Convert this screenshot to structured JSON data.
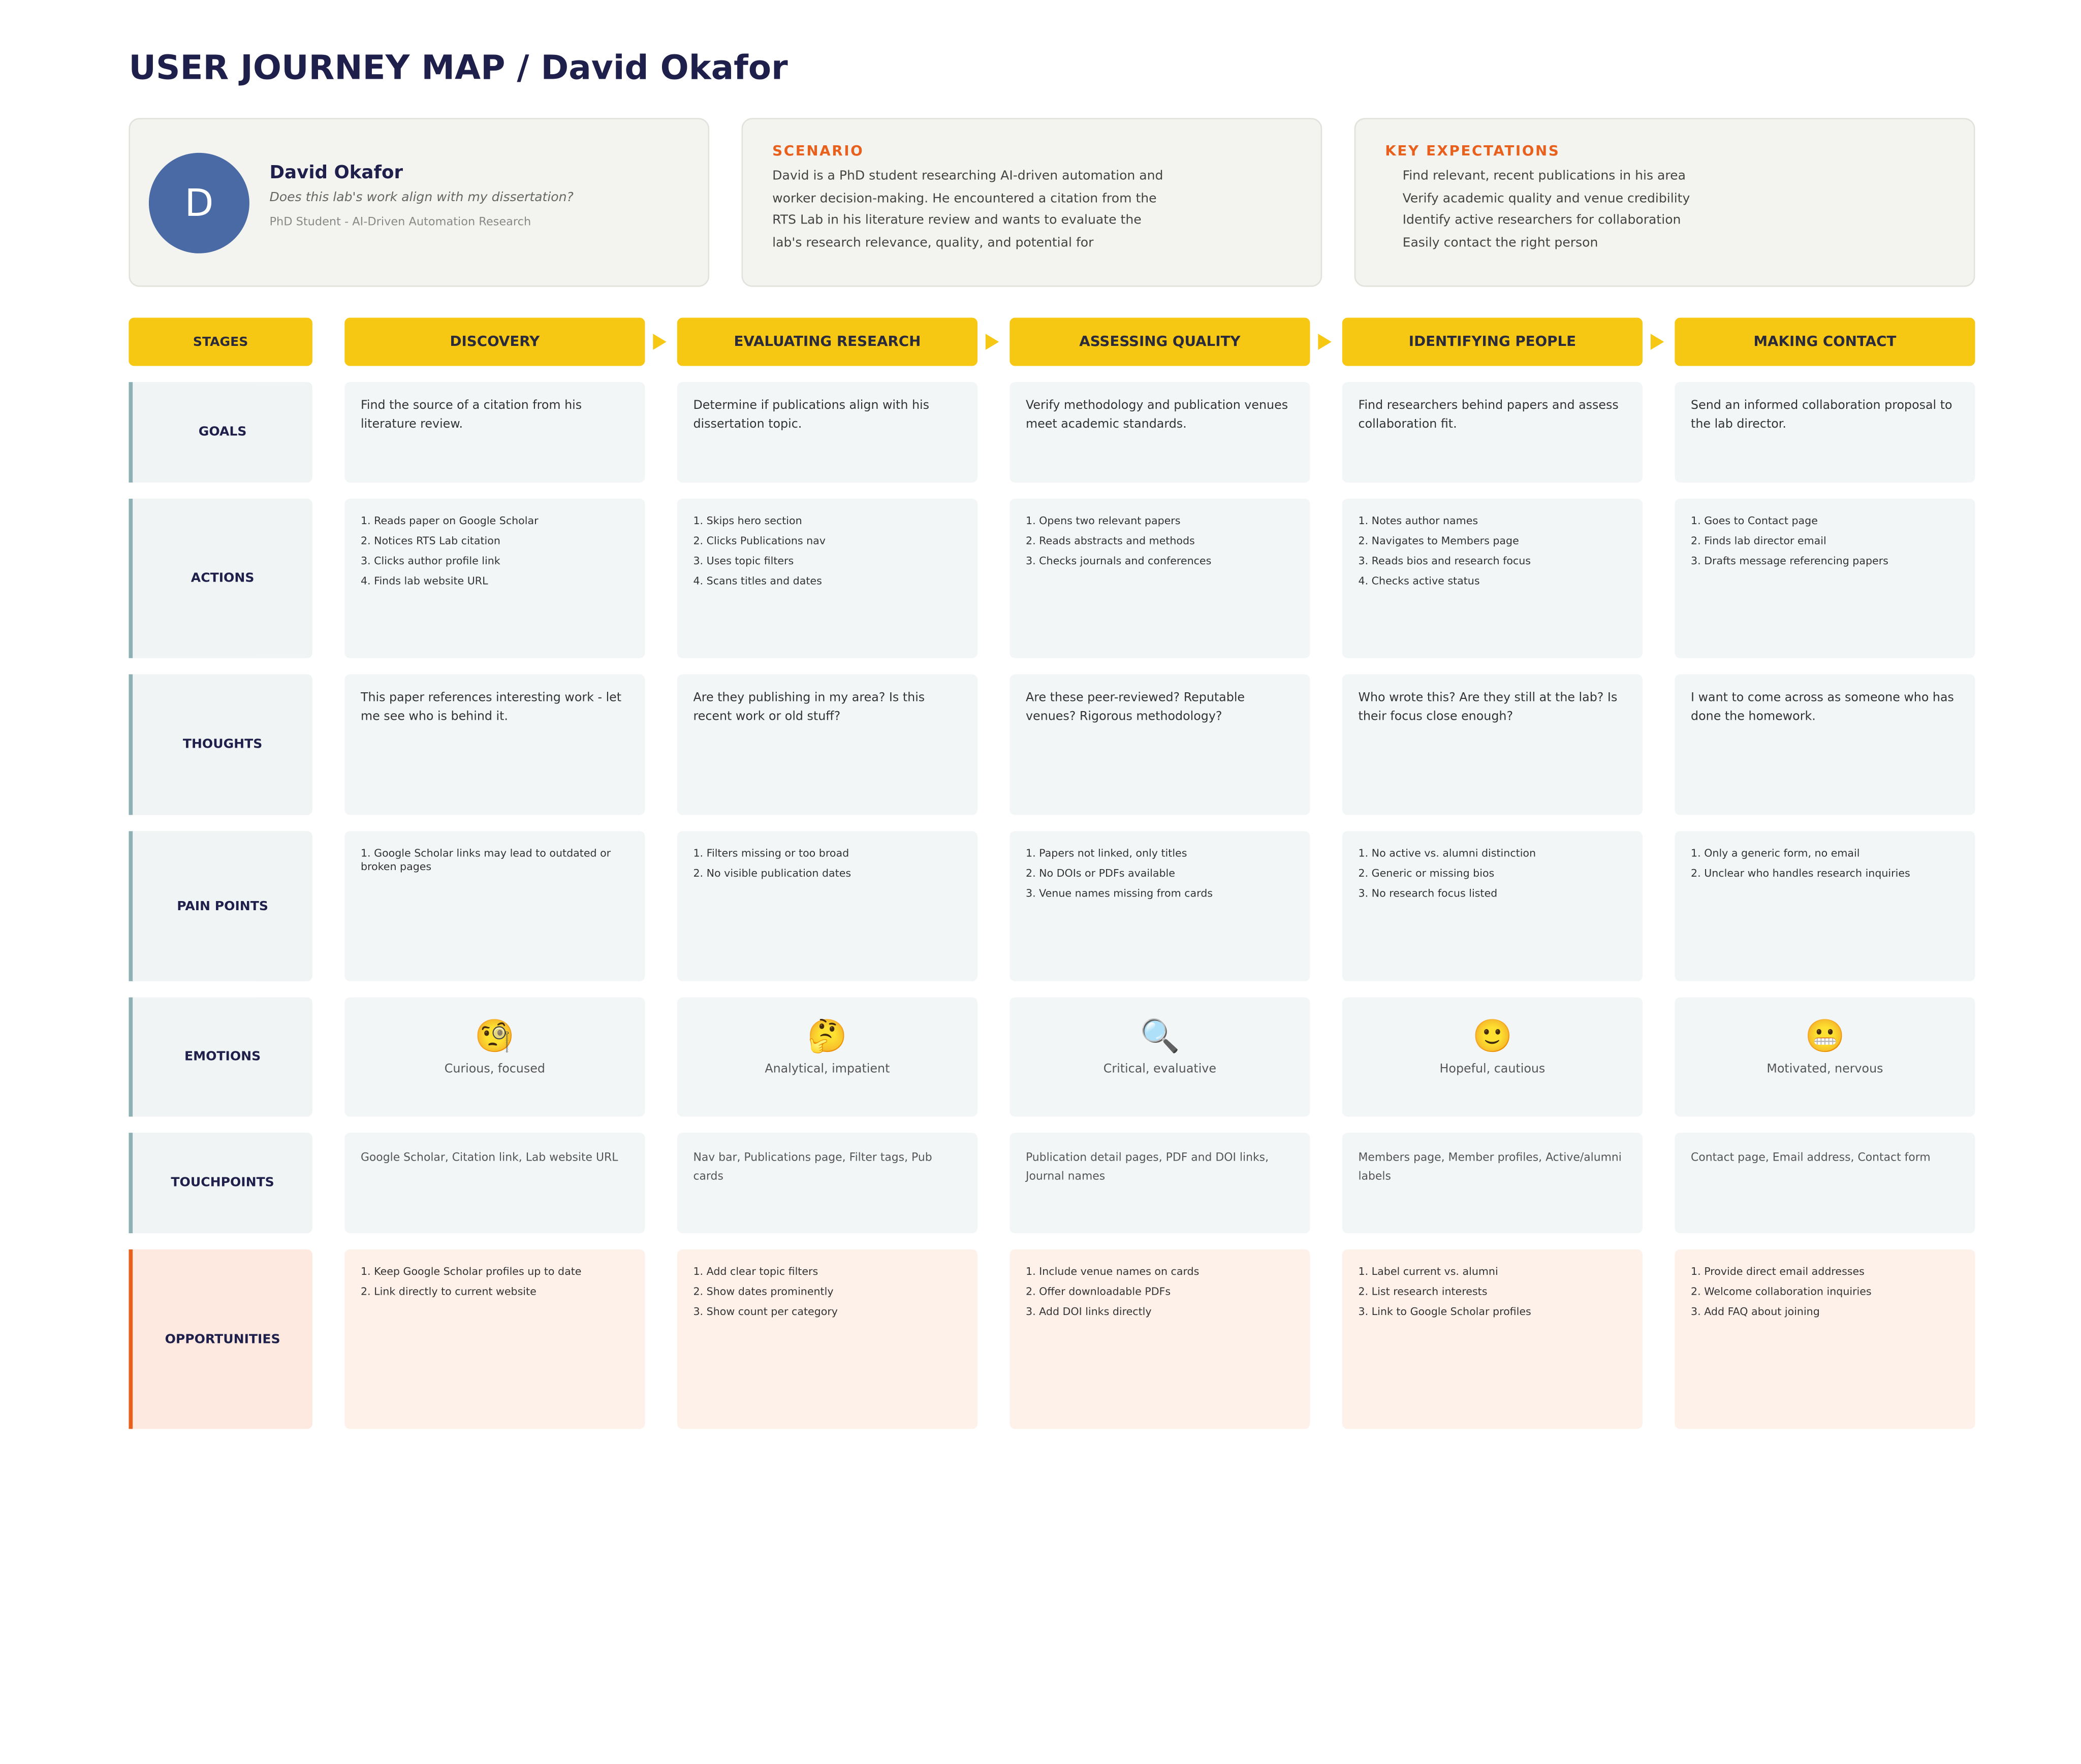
{
  "header": {
    "title": "USER JOURNEY MAP / David Okafor"
  },
  "persona": {
    "initial": "D",
    "name": "David Okafor",
    "question": "Does this lab's work align with my dissertation?",
    "role": "PhD Student - AI-Driven Automation Research"
  },
  "scenario": {
    "heading": "SCENARIO",
    "lines": [
      "David is a PhD student researching AI-driven automation and",
      "worker decision-making. He encountered a citation from the",
      "RTS Lab in his literature review and wants to evaluate the",
      "lab's research relevance, quality, and potential for"
    ]
  },
  "expectations": {
    "heading": "KEY EXPECTATIONS",
    "items": [
      "Find relevant, recent publications in his area",
      "Verify academic quality and venue credibility",
      "Identify active researchers for collaboration",
      "Easily contact the right person"
    ]
  },
  "stages": {
    "label": "STAGES",
    "items": [
      "DISCOVERY",
      "EVALUATING RESEARCH",
      "ASSESSING QUALITY",
      "IDENTIFYING PEOPLE",
      "MAKING CONTACT"
    ]
  },
  "rows": [
    {
      "label": "GOALS",
      "cells": [
        "Find the source of a citation from his literature review.",
        "Determine if publications align with his dissertation topic.",
        "Verify methodology and publication venues meet academic standards.",
        "Find researchers behind papers and assess collaboration fit.",
        "Send an informed collaboration proposal to the lab director."
      ]
    },
    {
      "label": "ACTIONS",
      "cells": [
        [
          "1. Reads paper on Google Scholar",
          "2. Notices RTS Lab citation",
          "3. Clicks author profile link",
          "4. Finds lab website URL"
        ],
        [
          "1. Skips hero section",
          "2. Clicks Publications nav",
          "3. Uses topic filters",
          "4. Scans titles and dates"
        ],
        [
          "1. Opens two relevant papers",
          "2. Reads abstracts and methods",
          "3. Checks journals and conferences"
        ],
        [
          "1. Notes author names",
          "2. Navigates to Members page",
          "3. Reads bios and research focus",
          "4. Checks active status"
        ],
        [
          "1. Goes to Contact page",
          "2. Finds lab director email",
          "3. Drafts message referencing papers"
        ]
      ]
    },
    {
      "label": "THOUGHTS",
      "cells": [
        "This paper references interesting work - let me see who is behind it.",
        "Are they publishing in my area? Is this recent work or old stuff?",
        "Are these peer-reviewed? Reputable venues? Rigorous methodology?",
        "Who wrote this? Are they still at the lab? Is their focus close enough?",
        "I want to come across as someone who has done the homework."
      ]
    },
    {
      "label": "PAIN POINTS",
      "cells": [
        [
          "1. Google Scholar links may lead to outdated or broken pages"
        ],
        [
          "1. Filters missing or too broad",
          "2. No visible publication dates"
        ],
        [
          "1. Papers not linked, only titles",
          "2. No DOIs or PDFs available",
          "3. Venue names missing from cards"
        ],
        [
          "1. No active vs. alumni distinction",
          "2. Generic or missing bios",
          "3. No research focus listed"
        ],
        [
          "1. Only a generic form, no email",
          "2. Unclear who handles research inquiries"
        ]
      ]
    },
    {
      "label": "EMOTIONS",
      "cells": [
        {
          "icon": "🧐",
          "text": "Curious, focused"
        },
        {
          "icon": "🤔",
          "text": "Analytical, impatient"
        },
        {
          "icon": "🔍",
          "text": "Critical, evaluative"
        },
        {
          "icon": "🙂",
          "text": "Hopeful, cautious"
        },
        {
          "icon": "😬",
          "text": "Motivated, nervous"
        }
      ]
    },
    {
      "label": "TOUCHPOINTS",
      "cells": [
        "Google Scholar, Citation link, Lab website URL",
        "Nav bar, Publications page, Filter tags, Pub cards",
        "Publication detail pages, PDF and DOI links, Journal names",
        "Members page, Member profiles, Active/alumni labels",
        "Contact page, Email address, Contact form"
      ]
    },
    {
      "label": "OPPORTUNITIES",
      "cells": [
        [
          "1. Keep Google Scholar profiles up to date",
          "2. Link directly to current website"
        ],
        [
          "1. Add clear topic filters",
          "2. Show dates prominently",
          "3. Show count per category"
        ],
        [
          "1. Include venue names on cards",
          "2. Offer downloadable PDFs",
          "3. Add DOI links directly"
        ],
        [
          "1. Label current vs. alumni",
          "2. List research interests",
          "3. Link to Google Scholar profiles"
        ],
        [
          "1. Provide direct email addresses",
          "2. Welcome collaboration inquiries",
          "3. Add FAQ about joining"
        ]
      ]
    }
  ]
}
